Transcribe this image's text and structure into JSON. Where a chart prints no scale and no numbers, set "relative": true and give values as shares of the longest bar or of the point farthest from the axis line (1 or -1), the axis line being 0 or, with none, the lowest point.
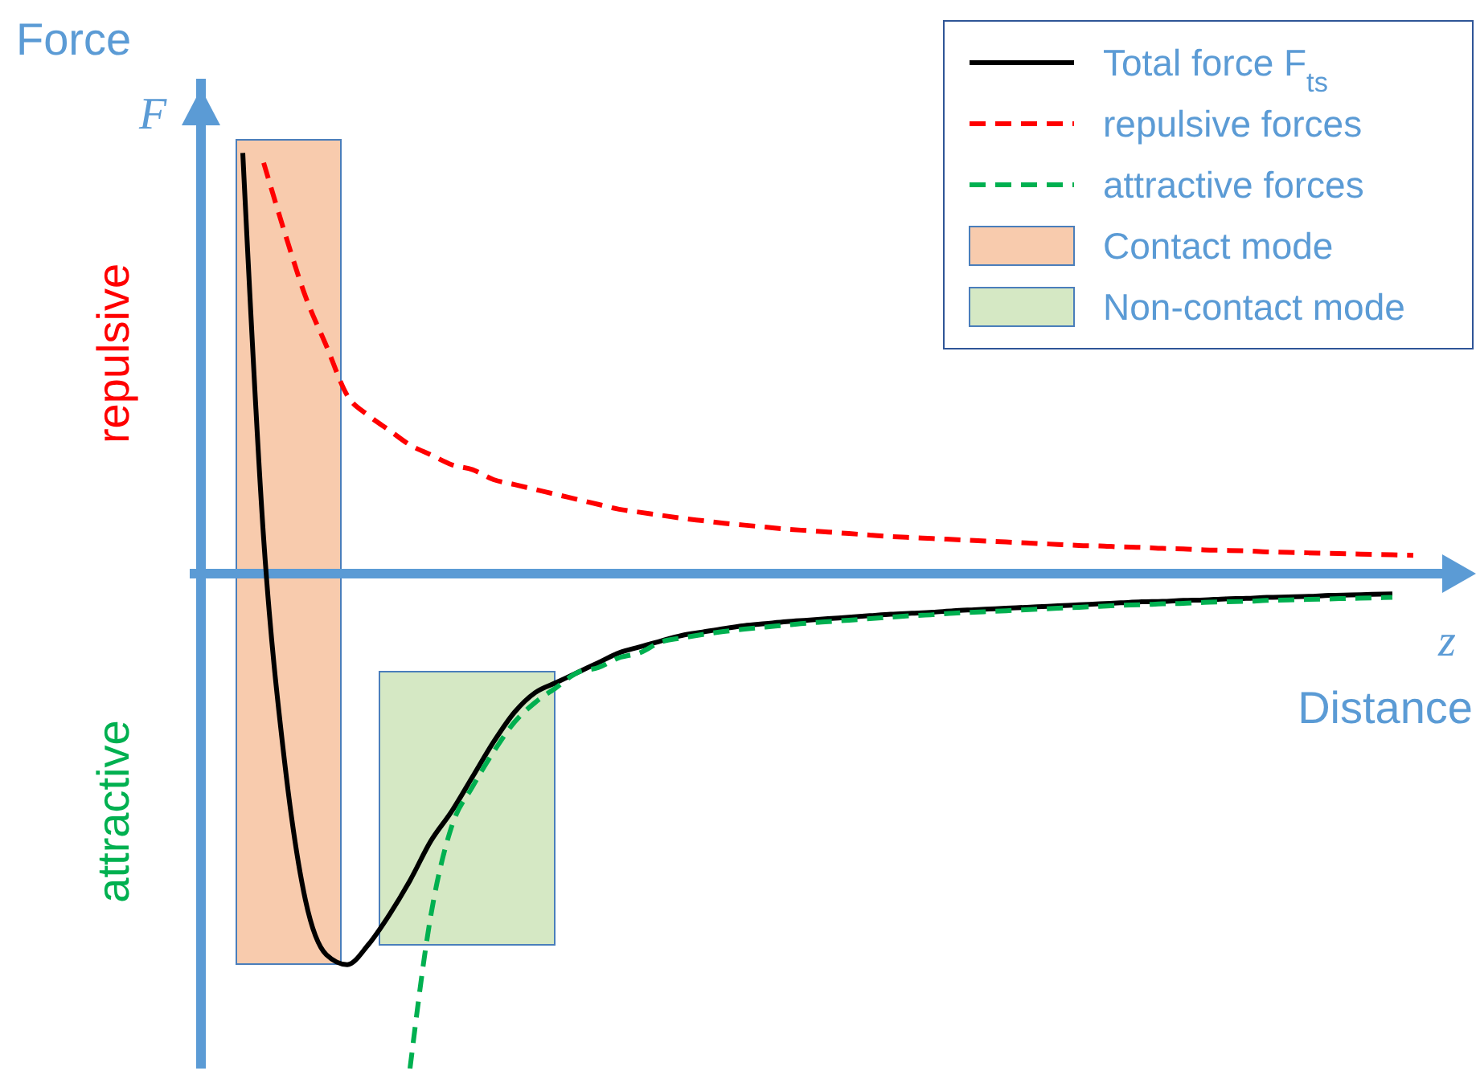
{
  "chart_data": {
    "type": "line",
    "relative": true,
    "ylabel": "Force",
    "xlabel": "Distance",
    "legend": "top right",
    "ref_lines": [
      {
        "axis": "y",
        "value": 0,
        "color": "#5b9bd5"
      }
    ],
    "annotations": [
      "F",
      "z",
      "repulsive",
      "attractive",
      "Contact mode",
      "Non-contact mode"
    ],
    "categories": [
      null,
      null,
      null,
      null,
      null,
      null,
      null,
      null,
      null,
      null,
      null,
      null,
      null,
      null,
      null,
      null,
      null,
      null,
      null,
      null,
      null,
      null,
      null,
      null,
      null,
      null,
      null,
      null,
      null,
      null,
      null,
      null,
      null,
      null,
      null,
      null,
      null,
      null,
      null,
      null,
      null,
      null,
      null,
      null,
      null,
      null,
      null,
      null,
      null,
      null,
      null,
      null,
      null,
      null,
      null,
      null,
      null,
      null,
      null,
      null,
      null
    ],
    "series": [
      {
        "name": "Total force F$_{ts}$",
        "color": "#000000",
        "line_style": "solid",
        "values": [
          null,
          null,
          0.85,
          0.07,
          -0.38,
          -0.66,
          -0.77,
          -0.79,
          -0.75,
          -0.69,
          -0.62,
          -0.54,
          -0.48,
          -0.41,
          -0.34,
          -0.28,
          -0.24,
          -0.22,
          -0.2,
          -0.18,
          -0.16,
          -0.148,
          -0.136,
          -0.125,
          -0.118,
          -0.111,
          -0.105,
          -0.101,
          -0.097,
          -0.094,
          -0.091,
          -0.088,
          -0.085,
          -0.082,
          -0.08,
          -0.078,
          -0.075,
          -0.073,
          -0.071,
          -0.069,
          -0.067,
          -0.065,
          -0.063,
          -0.061,
          -0.059,
          -0.057,
          -0.056,
          -0.054,
          -0.053,
          -0.051,
          -0.05,
          -0.048,
          -0.047,
          -0.046,
          -0.044,
          -0.043,
          -0.042,
          -0.041,
          null,
          null,
          null
        ]
      },
      {
        "name": "repulsive forces",
        "color": "#ff0000",
        "line_style": "dashed",
        "values": [
          null,
          null,
          null,
          0.83,
          0.69,
          0.56,
          0.46,
          0.36,
          0.32,
          0.29,
          0.26,
          0.24,
          0.22,
          0.21,
          0.19,
          0.18,
          0.17,
          0.16,
          0.15,
          0.14,
          0.13,
          0.124,
          0.118,
          0.112,
          0.107,
          0.102,
          0.098,
          0.094,
          0.09,
          0.087,
          0.084,
          0.081,
          0.078,
          0.075,
          0.073,
          0.071,
          0.069,
          0.067,
          0.065,
          0.063,
          0.061,
          0.059,
          0.057,
          0.056,
          0.054,
          0.053,
          0.051,
          0.05,
          0.048,
          0.047,
          0.046,
          0.044,
          0.043,
          0.042,
          0.041,
          0.04,
          0.039,
          0.038,
          0.037,
          null,
          null
        ]
      },
      {
        "name": "attractive forces",
        "color": "#00b050",
        "line_style": "dashed",
        "values": [
          null,
          null,
          null,
          null,
          null,
          null,
          null,
          null,
          null,
          null,
          -1,
          -0.69,
          -0.51,
          -0.43,
          -0.36,
          -0.3,
          -0.26,
          -0.23,
          -0.2,
          -0.19,
          -0.17,
          -0.16,
          -0.138,
          -0.13,
          -0.123,
          -0.117,
          -0.112,
          -0.108,
          -0.104,
          -0.1,
          -0.097,
          -0.094,
          -0.091,
          -0.088,
          -0.085,
          -0.083,
          -0.08,
          -0.078,
          -0.076,
          -0.074,
          -0.072,
          -0.07,
          -0.068,
          -0.066,
          -0.064,
          -0.063,
          -0.061,
          -0.06,
          -0.058,
          -0.057,
          -0.056,
          -0.054,
          -0.053,
          -0.052,
          -0.051,
          -0.05,
          -0.049,
          -0.048,
          null,
          null,
          null
        ]
      }
    ]
  }
}
